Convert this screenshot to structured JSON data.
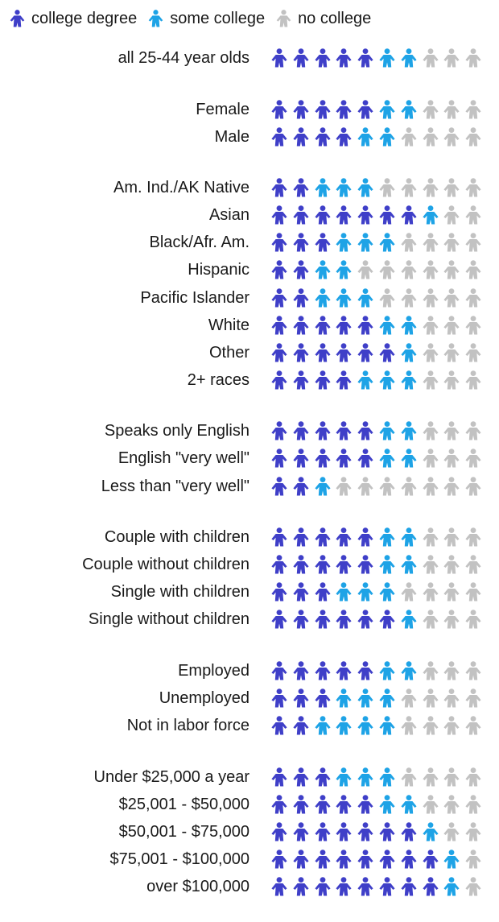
{
  "colors": {
    "college_degree": "#3f3fc8",
    "some_college": "#1ea3e6",
    "no_college": "#c2c2c2"
  },
  "icon": "person-icon",
  "chart_data": {
    "type": "pictograph",
    "units_per_row": 10,
    "legend": [
      {
        "key": "college_degree",
        "label": "college degree"
      },
      {
        "key": "some_college",
        "label": "some college"
      },
      {
        "key": "no_college",
        "label": "no college"
      }
    ],
    "groups": [
      {
        "rows": [
          {
            "label": "all 25-44 year olds",
            "college_degree": 5,
            "some_college": 2,
            "no_college": 3
          }
        ]
      },
      {
        "rows": [
          {
            "label": "Female",
            "college_degree": 5,
            "some_college": 2,
            "no_college": 3
          },
          {
            "label": "Male",
            "college_degree": 4,
            "some_college": 2,
            "no_college": 4
          }
        ]
      },
      {
        "rows": [
          {
            "label": "Am. Ind./AK Native",
            "college_degree": 2,
            "some_college": 3,
            "no_college": 5
          },
          {
            "label": "Asian",
            "college_degree": 7,
            "some_college": 1,
            "no_college": 2
          },
          {
            "label": "Black/Afr. Am.",
            "college_degree": 3,
            "some_college": 3,
            "no_college": 4
          },
          {
            "label": "Hispanic",
            "college_degree": 2,
            "some_college": 2,
            "no_college": 6
          },
          {
            "label": "Pacific Islander",
            "college_degree": 2,
            "some_college": 3,
            "no_college": 5
          },
          {
            "label": "White",
            "college_degree": 5,
            "some_college": 2,
            "no_college": 3
          },
          {
            "label": "Other",
            "college_degree": 6,
            "some_college": 1,
            "no_college": 3
          },
          {
            "label": "2+ races",
            "college_degree": 4,
            "some_college": 3,
            "no_college": 3
          }
        ]
      },
      {
        "rows": [
          {
            "label": "Speaks only English",
            "college_degree": 5,
            "some_college": 2,
            "no_college": 3
          },
          {
            "label": "English \"very well\"",
            "college_degree": 5,
            "some_college": 2,
            "no_college": 3
          },
          {
            "label": "Less than \"very well\"",
            "college_degree": 2,
            "some_college": 1,
            "no_college": 7
          }
        ]
      },
      {
        "rows": [
          {
            "label": "Couple with children",
            "college_degree": 5,
            "some_college": 2,
            "no_college": 3
          },
          {
            "label": "Couple without children",
            "college_degree": 5,
            "some_college": 2,
            "no_college": 3
          },
          {
            "label": "Single with children",
            "college_degree": 3,
            "some_college": 3,
            "no_college": 4
          },
          {
            "label": "Single without children",
            "college_degree": 6,
            "some_college": 1,
            "no_college": 3
          }
        ]
      },
      {
        "rows": [
          {
            "label": "Employed",
            "college_degree": 5,
            "some_college": 2,
            "no_college": 3
          },
          {
            "label": "Unemployed",
            "college_degree": 3,
            "some_college": 3,
            "no_college": 4
          },
          {
            "label": "Not in labor force",
            "college_degree": 2,
            "some_college": 4,
            "no_college": 4
          }
        ]
      },
      {
        "rows": [
          {
            "label": "Under $25,000 a year",
            "college_degree": 3,
            "some_college": 3,
            "no_college": 4
          },
          {
            "label": "$25,001 - $50,000",
            "college_degree": 5,
            "some_college": 2,
            "no_college": 3
          },
          {
            "label": "$50,001 - $75,000",
            "college_degree": 7,
            "some_college": 1,
            "no_college": 2
          },
          {
            "label": "$75,001 - $100,000",
            "college_degree": 8,
            "some_college": 1,
            "no_college": 1
          },
          {
            "label": "over $100,000",
            "college_degree": 8,
            "some_college": 1,
            "no_college": 1
          }
        ]
      }
    ]
  }
}
